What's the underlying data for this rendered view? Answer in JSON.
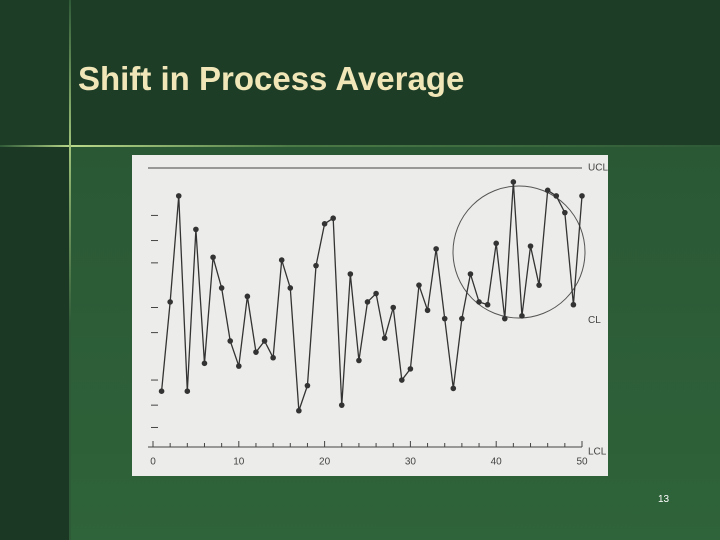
{
  "slide_title": "Shift in Process Average",
  "page_number": "13",
  "chart_data": {
    "type": "line",
    "x": [
      1,
      2,
      3,
      4,
      5,
      6,
      7,
      8,
      9,
      10,
      11,
      12,
      13,
      14,
      15,
      16,
      17,
      18,
      19,
      20,
      21,
      22,
      23,
      24,
      25,
      26,
      27,
      28,
      29,
      30,
      31,
      32,
      33,
      34,
      35,
      36,
      37,
      38,
      39,
      40,
      41,
      42,
      43,
      44,
      45,
      46,
      47,
      48,
      49,
      50
    ],
    "values": [
      20,
      52,
      90,
      20,
      78,
      30,
      68,
      57,
      38,
      29,
      54,
      34,
      38,
      32,
      67,
      57,
      13,
      22,
      65,
      80,
      82,
      15,
      62,
      31,
      52,
      55,
      39,
      50,
      24,
      28,
      58,
      49,
      71,
      46,
      21,
      46,
      62,
      52,
      51,
      73,
      46,
      95,
      47,
      72,
      58,
      92,
      90,
      84,
      51,
      90
    ],
    "color": "#333333",
    "xlim": [
      0,
      50
    ],
    "xticks": [
      0,
      10,
      20,
      30,
      40,
      50
    ],
    "xminorticks": [
      2,
      4,
      6,
      8,
      12,
      14,
      16,
      18,
      22,
      24,
      26,
      28,
      32,
      34,
      36,
      38,
      42,
      44,
      46,
      48
    ],
    "ylim": [
      0,
      100
    ],
    "ytickmarks": [
      83,
      74,
      66,
      50,
      41,
      24,
      15,
      7
    ],
    "reference_lines": [
      {
        "label": "UCL",
        "value": 100,
        "line": true
      },
      {
        "label": "CL",
        "value": 50,
        "line": false
      },
      {
        "label": "LCL",
        "value": 0,
        "line": true
      }
    ]
  }
}
